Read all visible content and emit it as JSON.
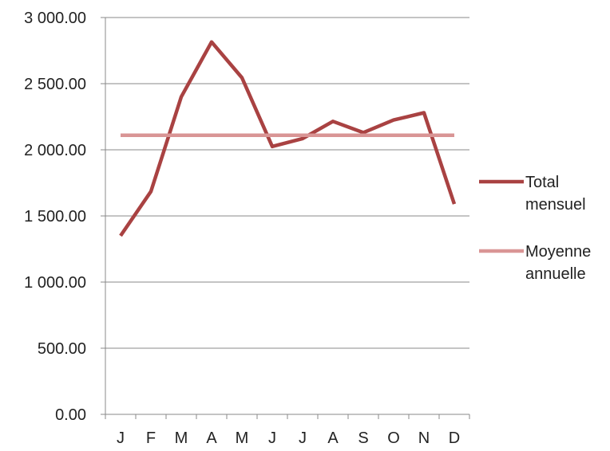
{
  "chart_data": {
    "type": "line",
    "categories": [
      "J",
      "F",
      "M",
      "A",
      "M",
      "J",
      "J",
      "A",
      "S",
      "O",
      "N",
      "D"
    ],
    "series": [
      {
        "name": "Total mensuel",
        "name_lines": [
          "Total",
          "mensuel"
        ],
        "color": "#a94242",
        "values": [
          1350,
          1685,
          2400,
          2815,
          2545,
          2025,
          2085,
          2215,
          2130,
          2225,
          2280,
          1590
        ]
      },
      {
        "name": "Moyenne annuelle",
        "name_lines": [
          "Moyenne",
          "annuelle"
        ],
        "color": "#d99595",
        "values": [
          2110,
          2110,
          2110,
          2110,
          2110,
          2110,
          2110,
          2110,
          2110,
          2110,
          2110,
          2110
        ]
      }
    ],
    "ylim": [
      0,
      3000
    ],
    "yticks": [
      0,
      500,
      1000,
      1500,
      2000,
      2500,
      3000
    ],
    "ytick_labels": [
      "0.00",
      "500.00",
      "1 000.00",
      "1 500.00",
      "2 000.00",
      "2 500.00",
      "3 000.00"
    ],
    "grid": true,
    "legend_position": "right",
    "gridline_color": "#888888",
    "axis_color": "#888888"
  }
}
